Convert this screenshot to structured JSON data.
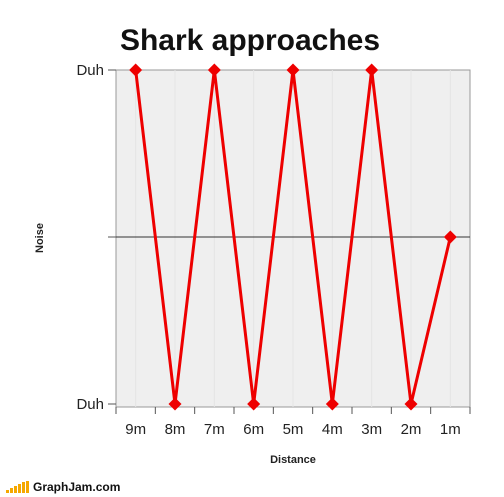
{
  "chart_data": {
    "type": "line",
    "title": "Shark approaches",
    "xlabel": "Distance",
    "ylabel": "Noise",
    "categories": [
      "9m",
      "8m",
      "7m",
      "6m",
      "5m",
      "4m",
      "3m",
      "2m",
      "1m"
    ],
    "series": [
      {
        "values": [
          1,
          0,
          1,
          0,
          1,
          0,
          1,
          0,
          0.5
        ]
      }
    ],
    "y_ticks": [
      {
        "value": 1,
        "label": "Duh"
      },
      {
        "value": 0.5,
        "label": ""
      },
      {
        "value": 0,
        "label": "Duh"
      }
    ],
    "ylim": [
      0,
      1
    ],
    "grid": true,
    "line_color": "#ee0000",
    "background_color": "#efefef"
  },
  "footer": {
    "brand": "GraphJam.com"
  }
}
